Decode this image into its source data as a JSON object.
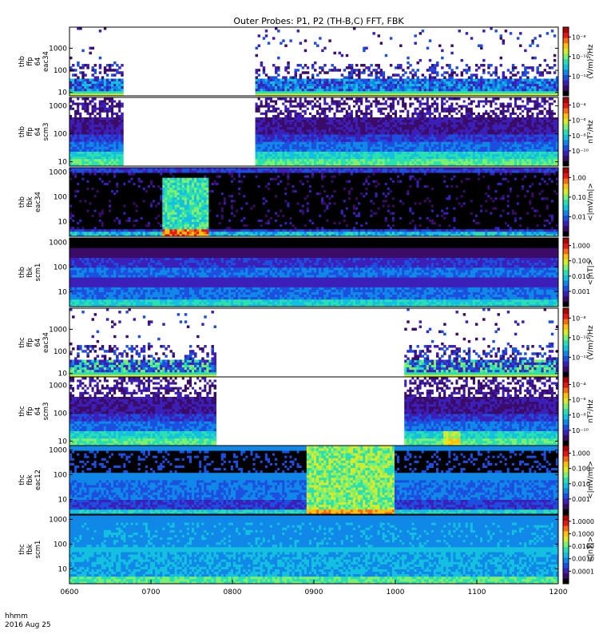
{
  "chart_data": {
    "type": "heatmap",
    "title": "Outer Probes: P1, P2 (TH-B,C) FFT, FBK",
    "footer_label": "hhmm",
    "date_label": "2016 Aug 25",
    "xaxis": {
      "ticks": [
        "0600",
        "0700",
        "0800",
        "0900",
        "1000",
        "1100",
        "1200"
      ],
      "range_hours": [
        6,
        12
      ]
    },
    "palette": [
      "#000000",
      "#3a0c68",
      "#3c1fb8",
      "#1c4fe0",
      "#1088e8",
      "#14c0e0",
      "#2ae0b0",
      "#7cf070",
      "#d8ea28",
      "#ffc010",
      "#ff6a10",
      "#e41818",
      "#b00000"
    ],
    "panels": [
      {
        "id": "thb-ffp-eac34",
        "ylabel": [
          "thb",
          "ffp",
          "64",
          "eac34"
        ],
        "yticks": [
          "10",
          "100",
          "1000"
        ],
        "ylim": [
          7,
          9000
        ],
        "ylog": true,
        "cbar_label": "(V/m)²/Hz",
        "cbar_ticks": [
          "10⁻¹²",
          "10⁻¹⁰",
          "10⁻⁸"
        ],
        "style": "sparse",
        "data_gaps": [
          [
            6.6667,
            8.2667
          ]
        ],
        "bursts": []
      },
      {
        "id": "thb-ffp-scm3",
        "ylabel": [
          "thb",
          "ffp",
          "64",
          "scm3"
        ],
        "yticks": [
          "10",
          "100",
          "1000"
        ],
        "ylim": [
          7,
          2000
        ],
        "ylog": true,
        "cbar_label": "nT²/Hz",
        "cbar_ticks": [
          "10⁻¹⁰",
          "10⁻⁸",
          "10⁻⁶",
          "10⁻⁴"
        ],
        "style": "layered",
        "data_gaps": [
          [
            6.6667,
            8.2667
          ]
        ],
        "bursts": []
      },
      {
        "id": "thb-fbk-eac34",
        "ylabel": [
          "thb",
          "fbk",
          "eac34"
        ],
        "yticks": [
          "10",
          "100",
          "1000"
        ],
        "ylim": [
          2.5,
          1500
        ],
        "ylog": true,
        "cbar_label": "<|mV/m|>",
        "cbar_ticks": [
          "0.01",
          "0.10",
          "1.00"
        ],
        "style": "fbk_dark",
        "data_gaps": [],
        "bursts": [
          [
            7.15,
            7.7
          ]
        ]
      },
      {
        "id": "thb-fbk-scm1",
        "ylabel": [
          "thb",
          "fbk",
          "scm1"
        ],
        "yticks": [
          "10",
          "100",
          "1000"
        ],
        "ylim": [
          2.5,
          1500
        ],
        "ylog": true,
        "cbar_label": "<|nT|>",
        "cbar_ticks": [
          "0.001",
          "0.010",
          "0.100",
          "1.000"
        ],
        "style": "fbk_scm_dark",
        "data_gaps": [],
        "bursts": []
      },
      {
        "id": "thc-ffp-eac34",
        "ylabel": [
          "thc",
          "ffp",
          "64",
          "eac34"
        ],
        "yticks": [
          "10",
          "100",
          "1000"
        ],
        "ylim": [
          7,
          9000
        ],
        "ylog": true,
        "cbar_label": "(V/m)²/Hz",
        "cbar_ticks": [
          "10⁻¹²",
          "10⁻¹⁰",
          "10⁻⁸"
        ],
        "style": "sparse_bright",
        "data_gaps": [
          [
            7.8,
            10.1
          ]
        ],
        "bursts": []
      },
      {
        "id": "thc-ffp-scm3",
        "ylabel": [
          "thc",
          "ffp",
          "64",
          "scm3"
        ],
        "yticks": [
          "10",
          "100",
          "1000"
        ],
        "ylim": [
          7,
          2000
        ],
        "ylog": true,
        "cbar_label": "nT²/Hz",
        "cbar_ticks": [
          "10⁻¹⁰",
          "10⁻⁸",
          "10⁻⁶",
          "10⁻⁴"
        ],
        "style": "layered",
        "data_gaps": [
          [
            7.8,
            10.1
          ]
        ],
        "bursts": [
          [
            10.6,
            10.8
          ]
        ]
      },
      {
        "id": "thc-fbk-eac12",
        "ylabel": [
          "thc",
          "fbk",
          "eac12"
        ],
        "yticks": [
          "10",
          "100",
          "1000"
        ],
        "ylim": [
          2.5,
          1500
        ],
        "ylog": true,
        "cbar_label": "<|mV/m|>",
        "cbar_ticks": [
          "0.001",
          "0.010",
          "0.100",
          "1.000"
        ],
        "style": "fbk_blue",
        "data_gaps": [],
        "bursts": [
          [
            8.9,
            10.0
          ]
        ]
      },
      {
        "id": "thc-fbk-scm1",
        "ylabel": [
          "thc",
          "fbk",
          "scm1"
        ],
        "yticks": [
          "10",
          "100",
          "1000"
        ],
        "ylim": [
          2.5,
          1500
        ],
        "ylog": true,
        "cbar_label": "<|nT|>",
        "cbar_ticks": [
          "0.0001",
          "0.0010",
          "0.0100",
          "0.1000",
          "1.0000"
        ],
        "style": "fbk_cyan",
        "data_gaps": [],
        "bursts": []
      }
    ]
  }
}
